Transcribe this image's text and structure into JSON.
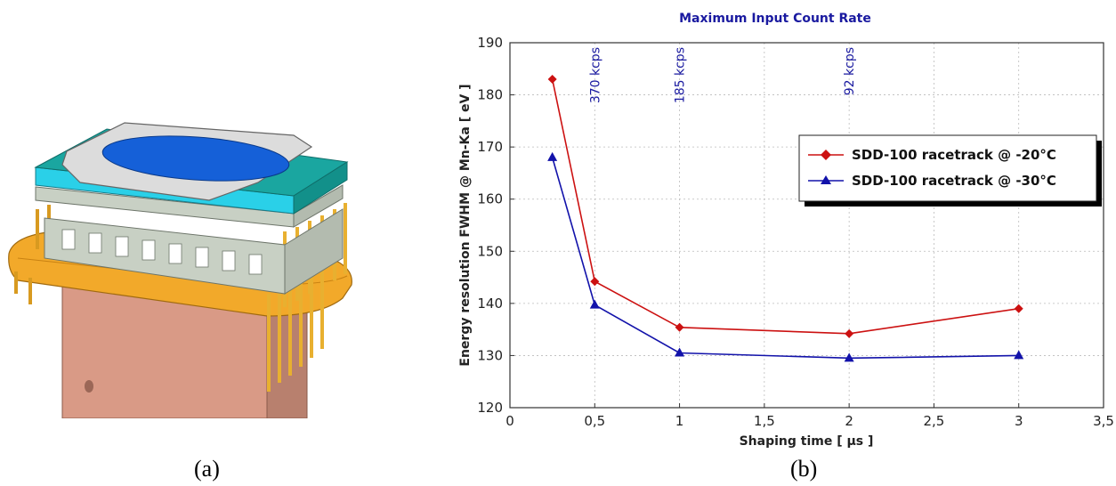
{
  "panels": {
    "a_label": "(a)",
    "b_label": "(b)"
  },
  "figure_a": {
    "icon": "sdd-module-3d-render-icon",
    "colors": {
      "gold": "#f2a92a",
      "copper": "#d99a86",
      "blue": "#1560d8",
      "cyan": "#2ad0e8",
      "teal": "#1aa6a0",
      "grey": "#c8ccc8"
    }
  },
  "chart_data": {
    "type": "line",
    "title": "Maximum Input Count Rate",
    "xlabel": "Shaping time  [ µs ]",
    "ylabel": "Energy resolution FWHM @ Mn-Ka [ eV ]",
    "xlim": [
      0,
      3.5
    ],
    "ylim": [
      120,
      190
    ],
    "xticks": [
      0,
      0.5,
      1,
      1.5,
      2,
      2.5,
      3,
      3.5
    ],
    "xtick_labels": [
      "0",
      "0,5",
      "1",
      "1,5",
      "2",
      "2,5",
      "3",
      "3,5"
    ],
    "yticks": [
      120,
      130,
      140,
      150,
      160,
      170,
      180,
      190
    ],
    "ytick_labels": [
      "120",
      "130",
      "140",
      "150",
      "160",
      "170",
      "180",
      "190"
    ],
    "grid": true,
    "legend_position": "upper-right",
    "series": [
      {
        "name": "SDD-100 racetrack @ -20°C",
        "color": "#cc1111",
        "marker": "diamond",
        "x": [
          0.25,
          0.5,
          1,
          2,
          3
        ],
        "y": [
          183,
          144.2,
          135.4,
          134.2,
          139
        ]
      },
      {
        "name": "SDD-100 racetrack  @ -30°C",
        "color": "#1212aa",
        "marker": "triangle",
        "x": [
          0.25,
          0.5,
          1,
          2,
          3
        ],
        "y": [
          168,
          139.7,
          130.5,
          129.5,
          130
        ]
      }
    ],
    "annotations": [
      {
        "text": "370 kcps",
        "x": 0.5
      },
      {
        "text": "185 kcps",
        "x": 1
      },
      {
        "text": "92 kcps",
        "x": 2
      }
    ]
  }
}
